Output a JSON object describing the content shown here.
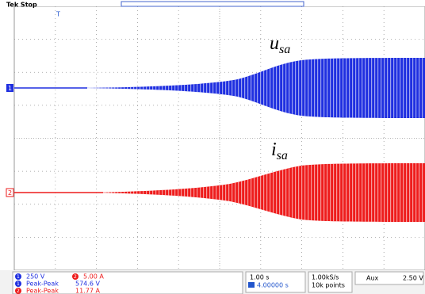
{
  "status": "Tek Stop",
  "trigger_marker": "T",
  "channels": [
    {
      "marker": "1",
      "signal": {
        "base": "u",
        "sub": "sa"
      },
      "scale": "250 V",
      "measurement": {
        "name": "Peak-Peak",
        "value": "574.6 V"
      }
    },
    {
      "marker": "2",
      "signal": {
        "base": "i",
        "sub": "sa"
      },
      "scale": "5.00 A",
      "measurement": {
        "name": "Peak-Peak",
        "value": "11.77 A"
      }
    }
  ],
  "timebase": {
    "scale": "1.00 s",
    "delay": "4.00000 s"
  },
  "acquisition": {
    "rate": "1.00kS/s",
    "points": "10k points"
  },
  "trigger": {
    "source": "Aux",
    "level": "2.50 V"
  }
}
